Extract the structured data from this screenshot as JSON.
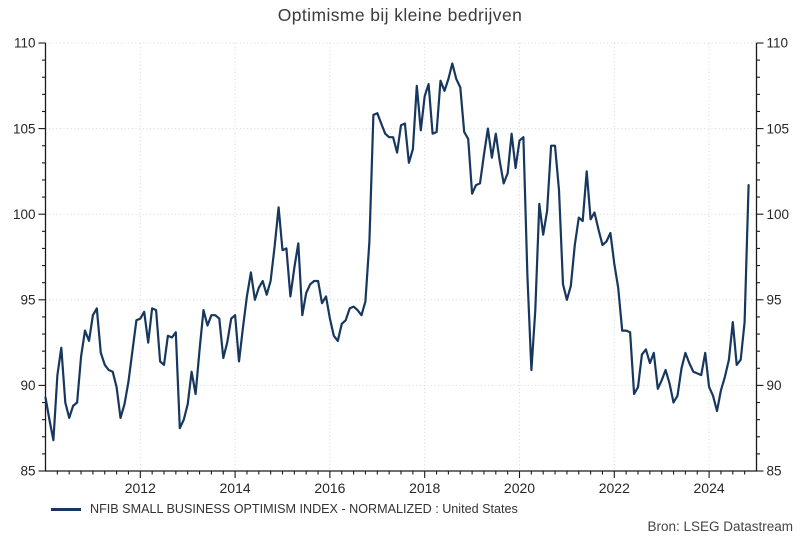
{
  "chart_data": {
    "type": "line",
    "title": "Optimisme bij kleine bedrijven",
    "xlabel": "",
    "ylabel": "",
    "ylim": [
      85,
      110
    ],
    "y_major_ticks": [
      85,
      90,
      95,
      100,
      105,
      110
    ],
    "y_minor_step": 1,
    "x_range": [
      2010,
      2025
    ],
    "x_ticks_labeled": [
      2012,
      2014,
      2016,
      2018,
      2020,
      2022,
      2024
    ],
    "x_minor_step_years": 0.25,
    "grid": "dotted",
    "axis_sides": [
      "left",
      "right",
      "bottom"
    ],
    "legend_position": "bottom-left",
    "series": [
      {
        "name": "NFIB SMALL BUSINESS OPTIMISM INDEX - NORMALIZED : United States",
        "color": "#17375e",
        "frequency": "monthly",
        "start_year": 2010,
        "start_month": 1,
        "end_label": "Nov 2024",
        "values": [
          89.3,
          88.0,
          86.8,
          90.6,
          92.2,
          89.0,
          88.1,
          88.8,
          89.0,
          91.7,
          93.2,
          92.6,
          94.1,
          94.5,
          91.9,
          91.2,
          90.9,
          90.8,
          89.9,
          88.1,
          88.9,
          90.2,
          92.0,
          93.8,
          93.9,
          94.3,
          92.5,
          94.5,
          94.4,
          91.4,
          91.2,
          92.9,
          92.8,
          93.1,
          87.5,
          88.0,
          88.9,
          90.8,
          89.5,
          92.1,
          94.4,
          93.5,
          94.1,
          94.1,
          93.9,
          91.6,
          92.5,
          93.9,
          94.1,
          91.4,
          93.4,
          95.2,
          96.6,
          95.0,
          95.7,
          96.1,
          95.3,
          96.1,
          98.1,
          100.4,
          97.9,
          98.0,
          95.2,
          96.9,
          98.3,
          94.1,
          95.4,
          95.9,
          96.1,
          96.1,
          94.8,
          95.2,
          93.9,
          92.9,
          92.6,
          93.6,
          93.8,
          94.5,
          94.6,
          94.4,
          94.1,
          94.9,
          98.4,
          105.8,
          105.9,
          105.3,
          104.7,
          104.5,
          104.5,
          103.6,
          105.2,
          105.3,
          103.0,
          103.8,
          107.5,
          104.9,
          106.9,
          107.6,
          104.7,
          104.8,
          107.8,
          107.2,
          107.9,
          108.8,
          107.9,
          107.4,
          104.8,
          104.4,
          101.2,
          101.7,
          101.8,
          103.5,
          105.0,
          103.3,
          104.7,
          103.1,
          101.8,
          102.4,
          104.7,
          102.7,
          104.3,
          104.5,
          96.4,
          90.9,
          94.4,
          100.6,
          98.8,
          100.2,
          104.0,
          104.0,
          101.4,
          95.9,
          95.0,
          95.8,
          98.2,
          99.8,
          99.6,
          102.5,
          99.7,
          100.1,
          99.1,
          98.2,
          98.4,
          98.9,
          97.1,
          95.7,
          93.2,
          93.2,
          93.1,
          89.5,
          89.9,
          91.8,
          92.1,
          91.3,
          91.9,
          89.8,
          90.3,
          90.9,
          90.1,
          89.0,
          89.4,
          91.0,
          91.9,
          91.3,
          90.8,
          90.7,
          90.6,
          91.9,
          89.9,
          89.4,
          88.5,
          89.7,
          90.5,
          91.5,
          93.7,
          91.2,
          91.5,
          93.7,
          101.7
        ]
      }
    ]
  },
  "footer": {
    "source": "Bron: LSEG Datastream"
  },
  "colors": {
    "line": "#17375e",
    "grid": "#d6d6d6",
    "axis": "#1a1a1a",
    "title_text": "#3b3b3b",
    "tick_text": "#262626"
  }
}
